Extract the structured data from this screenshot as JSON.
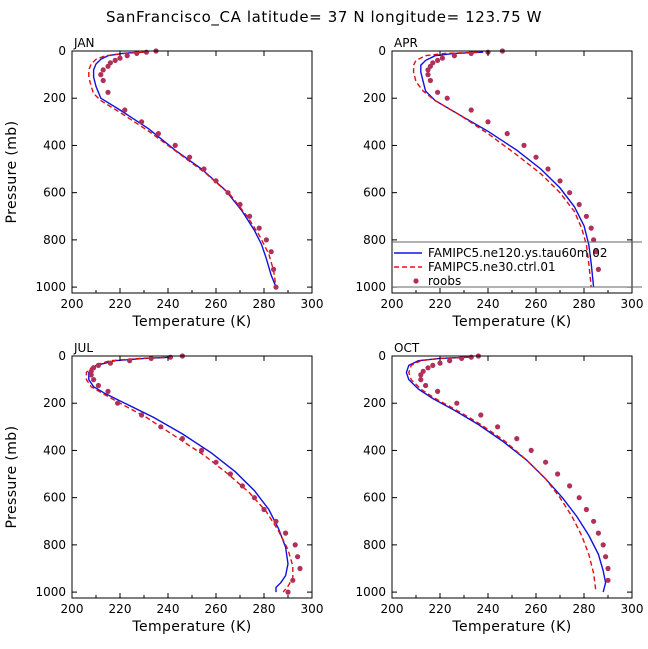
{
  "figure": {
    "title": "SanFrancisco_CA  latitude= 37 N longitude= 123.75 W"
  },
  "colors": {
    "series_1": "#1010e0",
    "series_2": "#e01010",
    "series_3": "#b0305a"
  },
  "legend": {
    "panel": "APR",
    "placement": "bottom-right",
    "entries": [
      "FAMIPC5.ne120.ys.tau60m.02",
      "FAMIPC5.ne30.ctrl.01",
      "roobs"
    ]
  },
  "chart_data": [
    {
      "type": "line",
      "panel_label": "JAN",
      "xlabel": "Temperature (K)",
      "ylabel": "Pressure (mb)",
      "xlim": [
        200,
        300
      ],
      "ylim": [
        1025,
        0
      ],
      "xticks": [
        200,
        220,
        240,
        260,
        280,
        300
      ],
      "yticks": [
        0,
        200,
        400,
        600,
        800,
        1000
      ],
      "series": [
        {
          "name": "FAMIPC5.ne120.ys.tau60m.02",
          "style": "solid",
          "x": [
            228,
            221,
            215,
            212,
            210,
            209,
            209,
            210,
            212,
            220,
            232,
            243,
            254,
            264,
            271,
            276,
            279,
            281,
            283,
            285
          ],
          "y": [
            5,
            10,
            20,
            35,
            55,
            80,
            110,
            150,
            200,
            250,
            330,
            420,
            500,
            590,
            680,
            760,
            820,
            880,
            950,
            1000
          ]
        },
        {
          "name": "FAMIPC5.ne30.ctrl.01",
          "style": "dashed",
          "x": [
            230,
            222,
            214,
            210,
            208,
            207,
            207,
            208,
            209,
            212,
            220,
            232,
            244,
            256,
            266,
            273,
            278,
            282,
            284,
            285
          ],
          "y": [
            5,
            10,
            20,
            35,
            55,
            80,
            110,
            150,
            180,
            210,
            260,
            340,
            430,
            520,
            610,
            700,
            780,
            860,
            930,
            1000
          ]
        },
        {
          "name": "roobs",
          "style": "dots",
          "x": [
            235,
            231,
            227,
            223,
            220,
            218,
            216,
            215,
            213,
            212,
            213,
            215,
            222,
            229,
            236,
            243,
            249,
            255,
            260,
            265,
            270,
            274,
            278,
            281,
            283,
            284,
            285
          ],
          "y": [
            0,
            5,
            10,
            20,
            30,
            40,
            50,
            65,
            80,
            100,
            125,
            175,
            250,
            300,
            350,
            400,
            450,
            500,
            550,
            600,
            650,
            700,
            750,
            800,
            850,
            925,
            1000
          ]
        }
      ]
    },
    {
      "type": "line",
      "panel_label": "APR",
      "xlabel": "Temperature (K)",
      "ylabel": "",
      "xlim": [
        200,
        300
      ],
      "ylim": [
        1025,
        0
      ],
      "xticks": [
        200,
        220,
        240,
        260,
        280,
        300
      ],
      "yticks": [
        0,
        200,
        400,
        600,
        800,
        1000
      ],
      "series": [
        {
          "name": "FAMIPC5.ne120.ys.tau60m.02",
          "style": "solid",
          "x": [
            238,
            226,
            218,
            214,
            212,
            212,
            213,
            214,
            218,
            228,
            240,
            252,
            262,
            270,
            276,
            280,
            282,
            283,
            284
          ],
          "y": [
            5,
            10,
            20,
            40,
            60,
            90,
            130,
            170,
            210,
            270,
            340,
            420,
            500,
            580,
            660,
            740,
            820,
            900,
            1000
          ]
        },
        {
          "name": "FAMIPC5.ne30.ctrl.01",
          "style": "dashed",
          "x": [
            236,
            222,
            214,
            210,
            209,
            209,
            210,
            213,
            218,
            228,
            240,
            252,
            262,
            270,
            276,
            279,
            281,
            282,
            283
          ],
          "y": [
            5,
            10,
            20,
            40,
            60,
            90,
            130,
            170,
            210,
            270,
            350,
            440,
            520,
            600,
            680,
            750,
            820,
            900,
            1000
          ]
        },
        {
          "name": "roobs",
          "style": "dots",
          "x": [
            246,
            240,
            233,
            226,
            221,
            219,
            217,
            216,
            215,
            215,
            216,
            219,
            223,
            233,
            240,
            248,
            255,
            260,
            265,
            270,
            274,
            278,
            281,
            283,
            284,
            285,
            286
          ],
          "y": [
            0,
            5,
            10,
            20,
            30,
            40,
            50,
            65,
            80,
            100,
            125,
            175,
            200,
            250,
            300,
            350,
            400,
            450,
            500,
            550,
            600,
            650,
            700,
            750,
            800,
            850,
            925
          ]
        }
      ]
    },
    {
      "type": "line",
      "panel_label": "JUL",
      "xlabel": "Temperature (K)",
      "ylabel": "Pressure (mb)",
      "xlim": [
        200,
        300
      ],
      "ylim": [
        1025,
        0
      ],
      "xticks": [
        200,
        220,
        240,
        260,
        280,
        300
      ],
      "yticks": [
        0,
        200,
        400,
        600,
        800,
        1000
      ],
      "series": [
        {
          "name": "FAMIPC5.ne120.ys.tau60m.02",
          "style": "solid",
          "x": [
            242,
            230,
            218,
            210,
            207,
            207,
            209,
            214,
            222,
            234,
            246,
            258,
            268,
            276,
            282,
            286,
            289,
            290,
            289,
            287,
            285,
            285
          ],
          "y": [
            5,
            10,
            20,
            40,
            70,
            100,
            130,
            160,
            200,
            260,
            330,
            410,
            490,
            570,
            650,
            730,
            810,
            880,
            930,
            960,
            980,
            1000
          ]
        },
        {
          "name": "FAMIPC5.ne30.ctrl.01",
          "style": "dashed",
          "x": [
            242,
            228,
            216,
            209,
            206,
            206,
            208,
            213,
            220,
            231,
            243,
            255,
            265,
            274,
            281,
            286,
            290,
            292,
            292,
            290,
            288
          ],
          "y": [
            5,
            10,
            20,
            40,
            70,
            100,
            130,
            160,
            200,
            260,
            340,
            420,
            500,
            580,
            660,
            740,
            820,
            890,
            940,
            975,
            1000
          ]
        },
        {
          "name": "roobs",
          "style": "dots",
          "x": [
            246,
            241,
            233,
            224,
            216,
            211,
            209,
            208,
            208,
            209,
            211,
            215,
            219,
            229,
            237,
            246,
            254,
            260,
            266,
            271,
            276,
            280,
            285,
            289,
            293,
            294,
            295,
            292,
            290
          ],
          "y": [
            0,
            5,
            10,
            20,
            30,
            40,
            50,
            65,
            80,
            100,
            125,
            150,
            200,
            250,
            300,
            350,
            400,
            450,
            500,
            550,
            600,
            650,
            700,
            750,
            800,
            850,
            900,
            950,
            1000
          ]
        }
      ]
    },
    {
      "type": "line",
      "panel_label": "OCT",
      "xlabel": "Temperature (K)",
      "ylabel": "",
      "xlim": [
        200,
        300
      ],
      "ylim": [
        1025,
        0
      ],
      "xticks": [
        200,
        220,
        240,
        260,
        280,
        300
      ],
      "yticks": [
        0,
        200,
        400,
        600,
        800,
        1000
      ],
      "series": [
        {
          "name": "FAMIPC5.ne120.ys.tau60m.02",
          "style": "solid",
          "x": [
            232,
            220,
            211,
            207,
            206,
            207,
            211,
            217,
            226,
            236,
            246,
            256,
            264,
            271,
            277,
            282,
            286,
            288,
            289,
            288
          ],
          "y": [
            5,
            10,
            20,
            40,
            70,
            100,
            140,
            180,
            230,
            290,
            360,
            440,
            520,
            600,
            680,
            760,
            840,
            910,
            960,
            1000
          ]
        },
        {
          "name": "FAMIPC5.ne30.ctrl.01",
          "style": "dashed",
          "x": [
            232,
            220,
            212,
            208,
            207,
            208,
            212,
            218,
            227,
            237,
            247,
            256,
            264,
            270,
            275,
            279,
            282,
            284,
            285
          ],
          "y": [
            5,
            10,
            20,
            40,
            70,
            100,
            140,
            180,
            230,
            290,
            360,
            440,
            520,
            600,
            680,
            760,
            840,
            920,
            1000
          ]
        },
        {
          "name": "roobs",
          "style": "dots",
          "x": [
            236,
            233,
            229,
            224,
            220,
            217,
            215,
            213,
            212,
            212,
            214,
            219,
            227,
            237,
            244,
            252,
            258,
            264,
            269,
            274,
            278,
            281,
            284,
            286,
            288,
            289,
            290,
            290
          ],
          "y": [
            0,
            5,
            10,
            20,
            30,
            40,
            50,
            65,
            80,
            100,
            125,
            150,
            200,
            250,
            300,
            350,
            400,
            450,
            500,
            550,
            600,
            650,
            700,
            750,
            800,
            850,
            900,
            950
          ]
        }
      ]
    }
  ]
}
